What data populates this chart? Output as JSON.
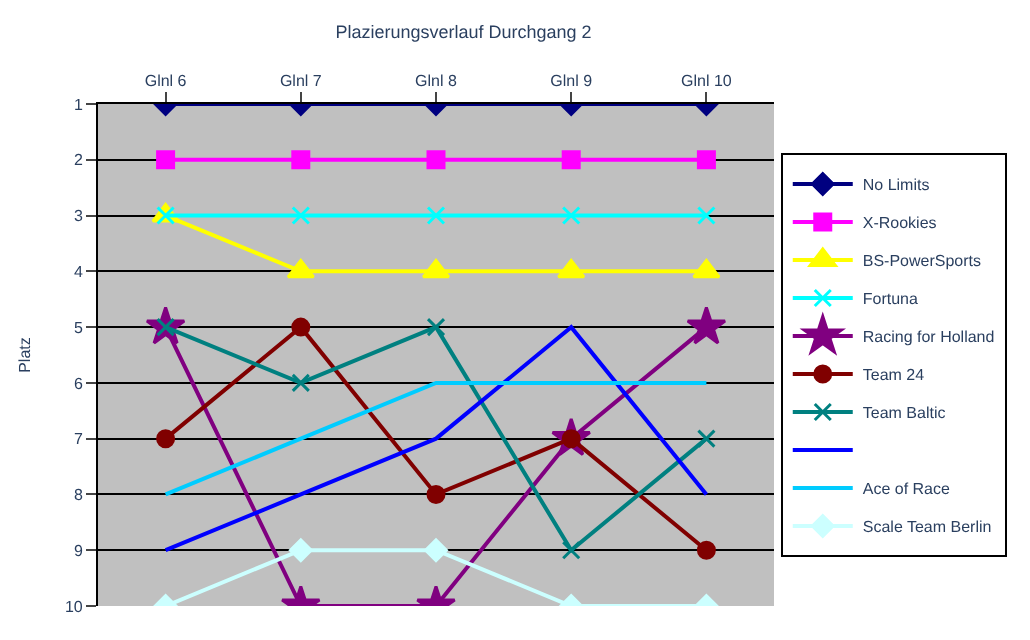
{
  "chart_data": {
    "type": "line",
    "title": "Plazierungsverlauf Durchgang 2",
    "ylabel": "Platz",
    "categories": [
      "Glnl 6",
      "Glnl 7",
      "Glnl 8",
      "Glnl 9",
      "Glnl 10"
    ],
    "ylim": [
      10,
      1
    ],
    "yticks": [
      1,
      2,
      3,
      4,
      5,
      6,
      7,
      8,
      9,
      10
    ],
    "grid": "y",
    "legend": "right",
    "series": [
      {
        "name": "No Limits",
        "color": "#000080",
        "marker": "diamond",
        "values": [
          1,
          1,
          1,
          1,
          1
        ]
      },
      {
        "name": "X-Rookies",
        "color": "#ff00ff",
        "marker": "square",
        "values": [
          2,
          2,
          2,
          2,
          2
        ]
      },
      {
        "name": "BS-PowerSports",
        "color": "#ffff00",
        "marker": "triangle",
        "values": [
          3,
          4,
          4,
          4,
          4
        ]
      },
      {
        "name": "Fortuna",
        "color": "#00ffff",
        "marker": "cross",
        "values": [
          3,
          3,
          3,
          3,
          3
        ]
      },
      {
        "name": "Racing for Holland",
        "color": "#800080",
        "marker": "star",
        "values": [
          5,
          10,
          10,
          7,
          5
        ]
      },
      {
        "name": "Team 24",
        "color": "#800000",
        "marker": "circle",
        "values": [
          7,
          5,
          8,
          7,
          9
        ]
      },
      {
        "name": "Team Baltic",
        "color": "#008080",
        "marker": "cross",
        "values": [
          5,
          6,
          5,
          9,
          7
        ]
      },
      {
        "color": "#0000ff",
        "marker": "none",
        "values": [
          9,
          8,
          7,
          5,
          8
        ]
      },
      {
        "name": "Ace of Race",
        "color": "#00ccff",
        "marker": "none",
        "values": [
          8,
          7,
          6,
          6,
          6
        ]
      },
      {
        "name": "Scale Team Berlin",
        "color": "#ccffff",
        "marker": "diamond",
        "values": [
          10,
          9,
          9,
          10,
          10
        ]
      }
    ]
  }
}
